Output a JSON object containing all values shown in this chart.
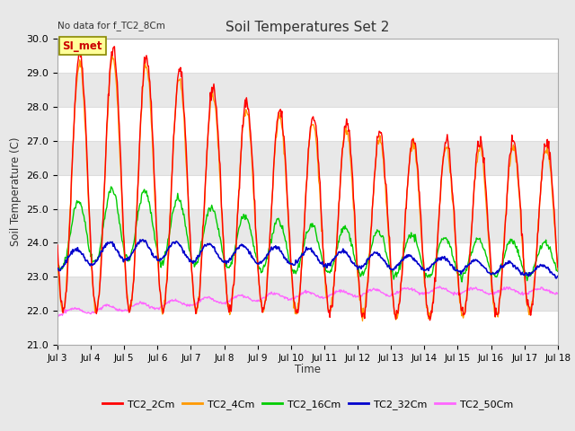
{
  "title": "Soil Temperatures Set 2",
  "top_left_text": "No data for f_TC2_8Cm",
  "ylabel": "Soil Temperature (C)",
  "xlabel": "Time",
  "ylim": [
    21.0,
    30.0
  ],
  "yticks": [
    21.0,
    22.0,
    23.0,
    24.0,
    25.0,
    26.0,
    27.0,
    28.0,
    29.0,
    30.0
  ],
  "xlim_days": [
    3,
    18
  ],
  "xtick_labels": [
    "Jul 3",
    "Jul 4",
    "Jul 5",
    "Jul 6",
    "Jul 7",
    "Jul 8",
    "Jul 9",
    "Jul 10",
    "Jul 11",
    "Jul 12",
    "Jul 13",
    "Jul 14",
    "Jul 15",
    "Jul 16",
    "Jul 17",
    "Jul 18"
  ],
  "fig_bg": "#e8e8e8",
  "plot_bg": "#ffffff",
  "grid_color": "#dddddd",
  "series": [
    {
      "label": "TC2_2Cm",
      "color": "#ff0000"
    },
    {
      "label": "TC2_4Cm",
      "color": "#ff9900"
    },
    {
      "label": "TC2_16Cm",
      "color": "#00cc00"
    },
    {
      "label": "TC2_32Cm",
      "color": "#0000cc"
    },
    {
      "label": "TC2_50Cm",
      "color": "#ff66ff"
    }
  ],
  "legend_box_label": "SI_met",
  "legend_box_bg": "#ffff99",
  "legend_box_border": "#888800"
}
